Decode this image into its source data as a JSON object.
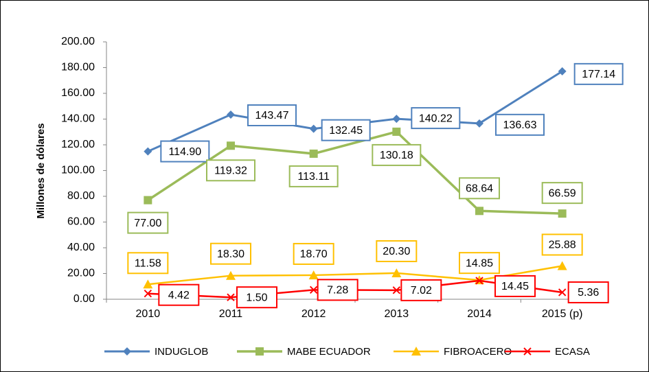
{
  "chart_data": {
    "type": "line",
    "y_label": "Millones de dólares",
    "categories": [
      "2010",
      "2011",
      "2012",
      "2013",
      "2014",
      "2015 (p)"
    ],
    "ylim": [
      0,
      200
    ],
    "yticks": [
      {
        "value": 0,
        "label": "0.00"
      },
      {
        "value": 20,
        "label": "20.00"
      },
      {
        "value": 40,
        "label": "40.00"
      },
      {
        "value": 60,
        "label": "60.00"
      },
      {
        "value": 80,
        "label": "80.00"
      },
      {
        "value": 100,
        "label": "100.00"
      },
      {
        "value": 120,
        "label": "120.00"
      },
      {
        "value": 140,
        "label": "140.00"
      },
      {
        "value": 160,
        "label": "160.00"
      },
      {
        "value": 180,
        "label": "180.00"
      },
      {
        "value": 200,
        "label": "200.00"
      }
    ],
    "series": [
      {
        "name": "INDUGLOB",
        "color": "#4f81bd",
        "values": [
          114.9,
          143.47,
          132.45,
          140.22,
          136.63,
          177.14
        ],
        "value_labels": [
          "114.90",
          "143.47",
          "132.45",
          "140.22",
          "136.63",
          "177.14"
        ]
      },
      {
        "name": "MABE ECUADOR",
        "color": "#9bbb59",
        "values": [
          77,
          119.32,
          113.11,
          130.18,
          68.64,
          66.59
        ],
        "value_labels": [
          "77.00",
          "119.32",
          "113.11",
          "130.18",
          "68.64",
          "66.59"
        ]
      },
      {
        "name": "FIBROACERO",
        "color": "#ffc000",
        "values": [
          11.58,
          18.3,
          18.7,
          20.3,
          14.85,
          25.88
        ],
        "value_labels": [
          "11.58",
          "18.30",
          "18.70",
          "20.30",
          "14.85",
          "25.88"
        ]
      },
      {
        "name": "ECASA",
        "color": "#ff0000",
        "values": [
          4.42,
          1.5,
          7.28,
          7.02,
          14.45,
          5.36
        ],
        "value_labels": [
          "4.42",
          "1.50",
          "7.28",
          "7.02",
          "14.45",
          "5.36"
        ]
      }
    ]
  }
}
